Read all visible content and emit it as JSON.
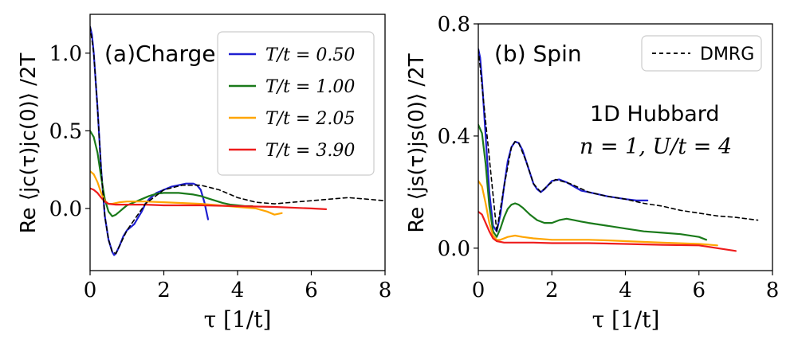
{
  "colors": {
    "T050": "#1f1fd0",
    "T100": "#1a7a1a",
    "T205": "#ffa500",
    "T390": "#ee1c1c",
    "dmrg": "#000000"
  },
  "xlabel": "τ [1/t]",
  "chart_data": [
    {
      "type": "line",
      "title": "(a)Charge",
      "ylabel": "Re ⟨jc(τ)jc(0)⟩ /2T",
      "xlim": [
        0,
        8
      ],
      "ylim": [
        -0.4,
        1.25
      ],
      "xticks": [
        0,
        2,
        4,
        6,
        8
      ],
      "yticks": [
        0.0,
        0.5,
        1.0
      ],
      "ytick_labels": [
        "0.0",
        "0.5",
        "1.0"
      ],
      "legend": {
        "placement": "top-right",
        "entries": [
          "T/t = 0.50",
          "T/t = 1.00",
          "T/t = 2.05",
          "T/t = 3.90"
        ]
      },
      "series": [
        {
          "name": "T/t = 0.50",
          "color_key": "T050",
          "x": [
            0,
            0.05,
            0.1,
            0.2,
            0.3,
            0.4,
            0.5,
            0.6,
            0.65,
            0.7,
            0.8,
            0.9,
            1.0,
            1.1,
            1.2,
            1.3,
            1.4,
            1.5,
            1.6,
            1.7,
            1.8,
            1.9,
            2.0,
            2.2,
            2.4,
            2.6,
            2.8,
            2.9,
            3.0,
            3.1,
            3.2
          ],
          "y": [
            1.17,
            1.12,
            1.0,
            0.65,
            0.25,
            -0.05,
            -0.2,
            -0.28,
            -0.3,
            -0.29,
            -0.24,
            -0.18,
            -0.14,
            -0.12,
            -0.1,
            -0.06,
            -0.02,
            0.03,
            0.06,
            0.08,
            0.1,
            0.11,
            0.12,
            0.14,
            0.15,
            0.16,
            0.16,
            0.15,
            0.12,
            0.04,
            -0.07
          ]
        },
        {
          "name": "T/t = 1.00",
          "color_key": "T100",
          "x": [
            0,
            0.1,
            0.2,
            0.3,
            0.4,
            0.5,
            0.6,
            0.7,
            0.8,
            0.9,
            1.0,
            1.2,
            1.4,
            1.6,
            1.8,
            2.0,
            2.2,
            2.4,
            2.6,
            2.8,
            3.0,
            3.2,
            3.4,
            3.6,
            3.8,
            4.0,
            4.2,
            4.4
          ],
          "y": [
            0.5,
            0.46,
            0.36,
            0.2,
            0.06,
            -0.02,
            -0.05,
            -0.04,
            -0.02,
            0.0,
            0.02,
            0.04,
            0.06,
            0.08,
            0.095,
            0.1,
            0.1,
            0.1,
            0.095,
            0.09,
            0.08,
            0.065,
            0.05,
            0.035,
            0.025,
            0.02,
            0.015,
            0.015
          ]
        },
        {
          "name": "T/t = 2.05",
          "color_key": "T205",
          "x": [
            0,
            0.1,
            0.2,
            0.3,
            0.4,
            0.5,
            0.6,
            0.8,
            1.0,
            1.5,
            2.0,
            2.5,
            3.0,
            3.5,
            4.0,
            4.5,
            4.8,
            5.0,
            5.2
          ],
          "y": [
            0.24,
            0.22,
            0.17,
            0.1,
            0.05,
            0.03,
            0.03,
            0.04,
            0.045,
            0.045,
            0.04,
            0.035,
            0.03,
            0.02,
            0.01,
            0.0,
            -0.02,
            -0.04,
            -0.03
          ]
        },
        {
          "name": "T/t = 3.90",
          "color_key": "T390",
          "x": [
            0,
            0.1,
            0.2,
            0.3,
            0.4,
            0.5,
            0.7,
            1.0,
            1.5,
            2.0,
            3.0,
            4.0,
            5.0,
            6.0,
            6.4
          ],
          "y": [
            0.13,
            0.12,
            0.1,
            0.07,
            0.045,
            0.03,
            0.025,
            0.025,
            0.025,
            0.02,
            0.02,
            0.015,
            0.01,
            0.0,
            -0.005
          ]
        },
        {
          "name": "DMRG",
          "color_key": "dmrg",
          "dashed": true,
          "x": [
            0,
            0.1,
            0.2,
            0.3,
            0.4,
            0.5,
            0.6,
            0.7,
            0.8,
            1.0,
            1.5,
            2.0,
            2.5,
            3.0,
            3.5,
            4.0,
            4.5,
            5.0,
            5.5,
            6.0,
            6.5,
            7.0,
            7.5,
            8.0
          ],
          "y": [
            1.17,
            1.0,
            0.65,
            0.25,
            -0.05,
            -0.2,
            -0.28,
            -0.29,
            -0.24,
            -0.14,
            0.03,
            0.12,
            0.15,
            0.15,
            0.12,
            0.07,
            0.04,
            0.03,
            0.04,
            0.05,
            0.06,
            0.07,
            0.06,
            0.05
          ]
        }
      ]
    },
    {
      "type": "line",
      "title": "(b) Spin",
      "ylabel": "Re ⟨js(τ)js(0)⟩ /2T",
      "xlim": [
        0,
        8
      ],
      "ylim": [
        -0.08,
        0.8
      ],
      "xticks": [
        0,
        2,
        4,
        6,
        8
      ],
      "yticks": [
        0.0,
        0.4,
        0.8
      ],
      "ytick_labels": [
        "0.0",
        "0.4",
        "0.8"
      ],
      "legend": {
        "placement": "top-right",
        "entries": [
          "DMRG"
        ]
      },
      "annotation": {
        "line1": "1D Hubbard",
        "line2": "n = 1,  U/t = 4"
      },
      "series": [
        {
          "name": "T/t = 0.50",
          "color_key": "T050",
          "x": [
            0,
            0.05,
            0.1,
            0.2,
            0.3,
            0.4,
            0.5,
            0.6,
            0.7,
            0.8,
            0.9,
            1.0,
            1.1,
            1.2,
            1.3,
            1.4,
            1.5,
            1.6,
            1.7,
            1.8,
            1.9,
            2.0,
            2.2,
            2.4,
            2.6,
            2.8,
            3.0,
            3.5,
            4.0,
            4.3,
            4.6
          ],
          "y": [
            0.71,
            0.68,
            0.6,
            0.4,
            0.2,
            0.08,
            0.06,
            0.12,
            0.22,
            0.31,
            0.36,
            0.38,
            0.375,
            0.35,
            0.31,
            0.27,
            0.23,
            0.21,
            0.2,
            0.21,
            0.225,
            0.24,
            0.245,
            0.235,
            0.22,
            0.205,
            0.2,
            0.185,
            0.175,
            0.17,
            0.17
          ]
        },
        {
          "name": "T/t = 1.00",
          "color_key": "T100",
          "x": [
            0,
            0.1,
            0.2,
            0.3,
            0.4,
            0.5,
            0.6,
            0.7,
            0.8,
            0.9,
            1.0,
            1.1,
            1.2,
            1.4,
            1.6,
            1.8,
            2.0,
            2.2,
            2.4,
            2.6,
            2.8,
            3.0,
            3.5,
            4.0,
            4.5,
            5.0,
            5.5,
            6.0,
            6.2
          ],
          "y": [
            0.44,
            0.41,
            0.3,
            0.15,
            0.06,
            0.04,
            0.07,
            0.11,
            0.14,
            0.155,
            0.16,
            0.155,
            0.145,
            0.12,
            0.1,
            0.09,
            0.09,
            0.1,
            0.105,
            0.1,
            0.095,
            0.09,
            0.08,
            0.07,
            0.06,
            0.055,
            0.05,
            0.04,
            0.03
          ]
        },
        {
          "name": "T/t = 2.05",
          "color_key": "T205",
          "x": [
            0,
            0.1,
            0.2,
            0.3,
            0.4,
            0.5,
            0.6,
            0.8,
            1.0,
            1.2,
            1.5,
            2.0,
            2.5,
            3.0,
            3.5,
            4.0,
            5.0,
            6.0,
            6.5
          ],
          "y": [
            0.24,
            0.22,
            0.16,
            0.09,
            0.045,
            0.03,
            0.03,
            0.04,
            0.045,
            0.04,
            0.035,
            0.03,
            0.03,
            0.03,
            0.028,
            0.025,
            0.02,
            0.015,
            0.01
          ]
        },
        {
          "name": "T/t = 3.90",
          "color_key": "T390",
          "x": [
            0,
            0.1,
            0.2,
            0.3,
            0.4,
            0.5,
            0.7,
            1.0,
            1.5,
            2.0,
            3.0,
            4.0,
            5.0,
            6.0,
            6.5,
            7.0
          ],
          "y": [
            0.13,
            0.12,
            0.09,
            0.06,
            0.035,
            0.025,
            0.02,
            0.02,
            0.02,
            0.018,
            0.018,
            0.015,
            0.012,
            0.01,
            0.0,
            -0.01
          ]
        },
        {
          "name": "DMRG",
          "color_key": "dmrg",
          "dashed": true,
          "x": [
            0,
            0.5,
            0.7,
            0.9,
            1.0,
            1.1,
            1.3,
            1.5,
            1.7,
            1.9,
            2.1,
            2.5,
            3.0,
            3.5,
            4.0,
            4.5,
            5.0,
            5.5,
            6.0,
            6.5,
            7.0,
            7.6
          ],
          "y": [
            0.71,
            0.06,
            0.22,
            0.36,
            0.38,
            0.375,
            0.31,
            0.23,
            0.2,
            0.225,
            0.245,
            0.23,
            0.2,
            0.185,
            0.175,
            0.16,
            0.15,
            0.135,
            0.125,
            0.115,
            0.11,
            0.1
          ]
        }
      ]
    }
  ]
}
